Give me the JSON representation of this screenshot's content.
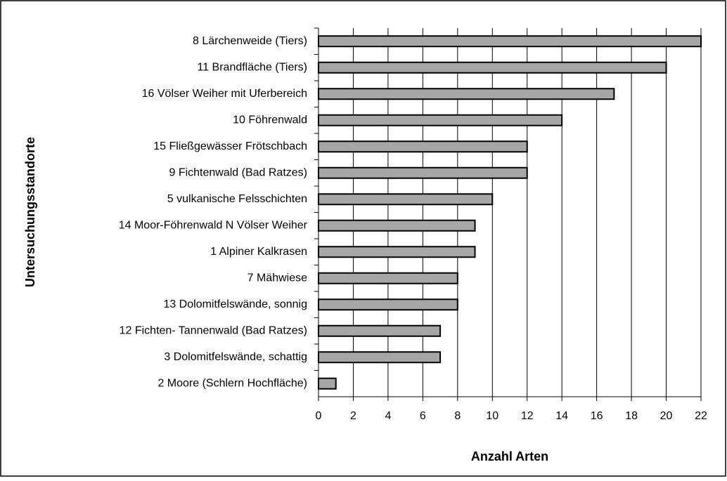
{
  "chart_data": {
    "type": "bar",
    "orientation": "horizontal",
    "xlabel": "Anzahl Arten",
    "ylabel": "Untersuchungsstandorte",
    "categories": [
      "8 Lärchenweide (Tiers)",
      "11 Brandfläche (Tiers)",
      "16 Völser Weiher mit Uferbereich",
      "10 Föhrenwald",
      "15 Fließgewässer Frötschbach",
      "9 Fichtenwald (Bad Ratzes)",
      "5 vulkanische Felsschichten",
      "14 Moor-Föhrenwald N Völser Weiher",
      "1 Alpiner Kalkrasen",
      "7 Mähwiese",
      "13 Dolomitfelswände, sonnig",
      "12 Fichten- Tannenwald (Bad Ratzes)",
      "3 Dolomitfelswände, schattig",
      "2 Moore (Schlern Hochfläche)"
    ],
    "values": [
      22,
      20,
      17,
      14,
      12,
      12,
      10,
      9,
      9,
      8,
      8,
      7,
      7,
      1
    ],
    "color": "#a6a6a6",
    "xlim": [
      0,
      22
    ],
    "xticks": [
      0,
      2,
      4,
      6,
      8,
      10,
      12,
      14,
      16,
      18,
      20,
      22
    ],
    "grid": true
  }
}
